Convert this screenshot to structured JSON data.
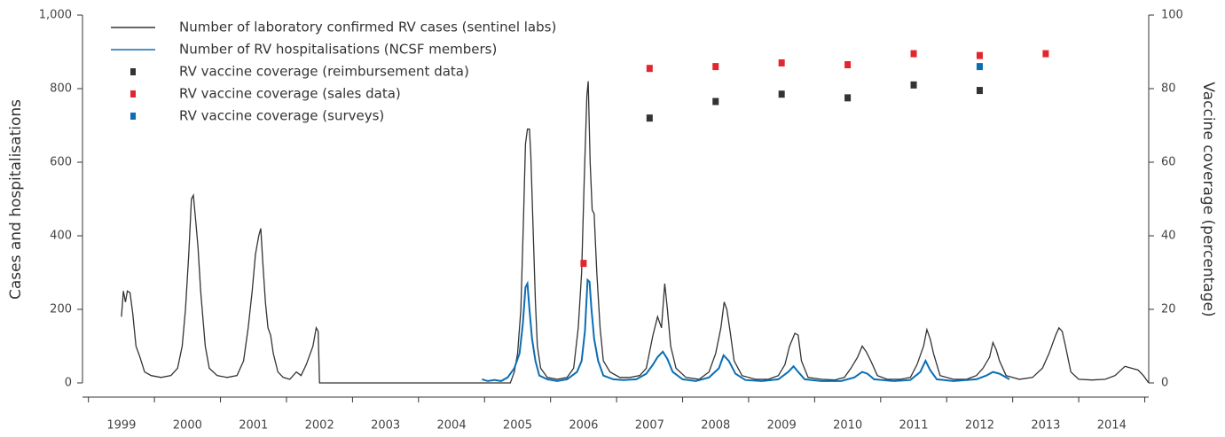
{
  "chart_data": {
    "type": "line",
    "y_label": "Cases and hospitalisations",
    "y2_label": "Vaccine coverage (percentage)",
    "xlim": [
      1998.41,
      2014.56
    ],
    "xticks": [
      1999,
      2000,
      2001,
      2002,
      2003,
      2004,
      2005,
      2006,
      2007,
      2008,
      2009,
      2010,
      2011,
      2012,
      2013,
      2014
    ],
    "ylim": [
      0,
      1000
    ],
    "yticks": [
      0,
      200,
      400,
      600,
      800,
      {
        "value": 1000,
        "label": "1,000"
      }
    ],
    "y2lim": [
      0,
      100
    ],
    "y2ticks": [
      0,
      20,
      40,
      60,
      80,
      100
    ],
    "grid": false,
    "legend": "top-left",
    "series": [
      {
        "name": "Number of laboratory confirmed RV cases (sentinel labs)",
        "color": "#333333",
        "style": "line",
        "x": [
          1999.0,
          1999.03,
          1999.06,
          1999.09,
          1999.13,
          1999.17,
          1999.22,
          1999.28,
          1999.35,
          1999.45,
          1999.6,
          1999.75,
          1999.85,
          1999.92,
          1999.97,
          2000.02,
          2000.06,
          2000.09,
          2000.12,
          2000.16,
          2000.2,
          2000.27,
          2000.33,
          2000.45,
          2000.6,
          2000.75,
          2000.85,
          2000.92,
          2000.98,
          2001.03,
          2001.08,
          2001.11,
          2001.14,
          2001.18,
          2001.22,
          2001.26,
          2001.3,
          2001.37,
          2001.45,
          2001.55,
          2001.65,
          2001.72,
          2001.8,
          2001.9,
          2001.95,
          2001.98,
          2002.0,
          2004.89,
          2004.95,
          2005.0,
          2005.05,
          2005.09,
          2005.12,
          2005.15,
          2005.18,
          2005.2,
          2005.23,
          2005.27,
          2005.3,
          2005.35,
          2005.45,
          2005.6,
          2005.75,
          2005.85,
          2005.92,
          2005.97,
          2006.01,
          2006.05,
          2006.07,
          2006.1,
          2006.13,
          2006.16,
          2006.2,
          2006.25,
          2006.3,
          2006.4,
          2006.55,
          2006.7,
          2006.85,
          2006.95,
          2007.05,
          2007.12,
          2007.18,
          2007.23,
          2007.27,
          2007.32,
          2007.4,
          2007.55,
          2007.75,
          2007.9,
          2008.0,
          2008.08,
          2008.13,
          2008.17,
          2008.22,
          2008.28,
          2008.4,
          2008.6,
          2008.8,
          2008.95,
          2009.05,
          2009.12,
          2009.2,
          2009.25,
          2009.3,
          2009.4,
          2009.6,
          2009.8,
          2009.95,
          2010.05,
          2010.15,
          2010.22,
          2010.28,
          2010.35,
          2010.45,
          2010.6,
          2010.8,
          2010.95,
          2011.05,
          2011.15,
          2011.2,
          2011.25,
          2011.3,
          2011.4,
          2011.6,
          2011.8,
          2011.95,
          2012.05,
          2012.15,
          2012.2,
          2012.25,
          2012.3,
          2012.4,
          2012.6,
          2012.8,
          2012.95,
          2013.05,
          2013.15,
          2013.2,
          2013.25,
          2013.3,
          2013.38,
          2013.5,
          2013.7,
          2013.9,
          2014.05,
          2014.2,
          2014.3,
          2014.4,
          2014.48,
          2014.56
        ],
        "values": [
          180,
          250,
          220,
          250,
          245,
          190,
          100,
          70,
          30,
          20,
          15,
          20,
          40,
          100,
          200,
          350,
          500,
          510,
          450,
          370,
          250,
          100,
          40,
          20,
          15,
          20,
          60,
          150,
          250,
          350,
          400,
          420,
          330,
          220,
          150,
          130,
          80,
          30,
          15,
          10,
          30,
          20,
          50,
          100,
          150,
          140,
          0,
          0,
          30,
          80,
          200,
          450,
          650,
          690,
          690,
          620,
          450,
          220,
          100,
          40,
          15,
          10,
          15,
          40,
          150,
          300,
          550,
          780,
          820,
          600,
          470,
          460,
          300,
          150,
          60,
          30,
          15,
          15,
          20,
          40,
          130,
          180,
          150,
          270,
          200,
          100,
          40,
          15,
          10,
          30,
          80,
          150,
          220,
          200,
          140,
          60,
          20,
          10,
          10,
          20,
          50,
          100,
          135,
          130,
          60,
          15,
          10,
          8,
          15,
          40,
          70,
          100,
          85,
          60,
          20,
          10,
          10,
          15,
          50,
          100,
          145,
          120,
          80,
          20,
          10,
          10,
          20,
          40,
          70,
          110,
          90,
          60,
          20,
          10,
          15,
          40,
          80,
          130,
          150,
          140,
          100,
          30,
          10,
          8,
          10,
          20,
          45,
          40,
          35,
          20,
          0
        ]
      },
      {
        "name": "Number of RV hospitalisations (NCSF members)",
        "color": "#0a6eb4",
        "style": "line",
        "x": [
          2004.46,
          2004.55,
          2004.65,
          2004.75,
          2004.85,
          2004.95,
          2005.03,
          2005.08,
          2005.12,
          2005.15,
          2005.18,
          2005.22,
          2005.27,
          2005.33,
          2005.45,
          2005.6,
          2005.75,
          2005.9,
          2005.97,
          2006.02,
          2006.06,
          2006.09,
          2006.12,
          2006.16,
          2006.22,
          2006.3,
          2006.45,
          2006.6,
          2006.8,
          2006.95,
          2007.05,
          2007.12,
          2007.2,
          2007.27,
          2007.35,
          2007.5,
          2007.7,
          2007.9,
          2008.05,
          2008.12,
          2008.2,
          2008.3,
          2008.45,
          2008.7,
          2008.95,
          2009.1,
          2009.18,
          2009.25,
          2009.35,
          2009.6,
          2009.9,
          2010.1,
          2010.22,
          2010.3,
          2010.4,
          2010.7,
          2010.95,
          2011.1,
          2011.18,
          2011.25,
          2011.35,
          2011.6,
          2011.95,
          2012.1,
          2012.2,
          2012.3,
          2012.45
        ],
        "values": [
          10,
          5,
          8,
          5,
          15,
          40,
          80,
          160,
          260,
          270,
          200,
          120,
          60,
          20,
          10,
          5,
          10,
          30,
          60,
          140,
          280,
          275,
          200,
          120,
          60,
          20,
          10,
          8,
          10,
          25,
          50,
          70,
          85,
          65,
          30,
          10,
          5,
          15,
          40,
          75,
          60,
          25,
          8,
          5,
          10,
          30,
          45,
          30,
          10,
          5,
          5,
          15,
          30,
          25,
          10,
          5,
          8,
          30,
          60,
          35,
          10,
          5,
          10,
          20,
          30,
          25,
          10
        ]
      },
      {
        "name": "RV vaccine coverage (reimbursement data)",
        "color": "#333333",
        "style": "point",
        "axis": "y2",
        "x": [
          2007,
          2008,
          2009,
          2010,
          2011,
          2012
        ],
        "values": [
          72,
          76.5,
          78.5,
          77.5,
          81,
          79.5
        ]
      },
      {
        "name": "RV vaccine coverage (sales data)",
        "color": "#e3262e",
        "style": "point",
        "axis": "y2",
        "x": [
          2006,
          2007,
          2008,
          2009,
          2010,
          2011,
          2012,
          2013
        ],
        "values": [
          32.5,
          85.5,
          86,
          87,
          86.5,
          89.5,
          89,
          89.5
        ]
      },
      {
        "name": "RV vaccine coverage (surveys)",
        "color": "#0a6eb4",
        "style": "point",
        "axis": "y2",
        "x": [
          2012
        ],
        "values": [
          86
        ]
      }
    ]
  }
}
